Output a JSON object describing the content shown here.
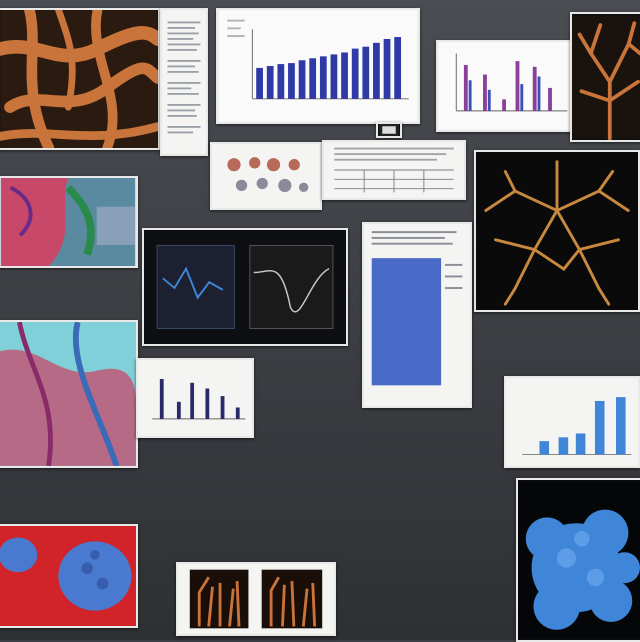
{
  "colors": {
    "background": "#3a3d42",
    "paper": "#f4f4f2",
    "coral_orange": "#c8743a",
    "coral_blue": "#3f86d8",
    "bar_blue": "#2f3aa8",
    "bar_purple": "#8a3f9a",
    "tissue_pink": "#c8486a",
    "tissue_teal": "#7fd0d8"
  },
  "tiles": [
    {
      "name": "orange-coral-photo",
      "icon": "coral-photo"
    },
    {
      "name": "text-document",
      "icon": "document"
    },
    {
      "name": "blue-bar-chart",
      "icon": "bar-chart"
    },
    {
      "name": "purple-bar-chart",
      "icon": "bar-chart"
    },
    {
      "name": "orange-coral-fan-photo",
      "icon": "coral-photo"
    },
    {
      "name": "monitor-screen",
      "icon": "monitor"
    },
    {
      "name": "pink-tissue-micrograph",
      "icon": "micrograph"
    },
    {
      "name": "specimen-sheet",
      "icon": "document"
    },
    {
      "name": "data-table-sheet",
      "icon": "table"
    },
    {
      "name": "dark-coral-network-photo",
      "icon": "coral-photo"
    },
    {
      "name": "blue-text-report",
      "icon": "document"
    },
    {
      "name": "line-plot-screen",
      "icon": "line-chart"
    },
    {
      "name": "teal-tissue-section",
      "icon": "micrograph"
    },
    {
      "name": "small-bar-chart",
      "icon": "bar-chart"
    },
    {
      "name": "large-blue-bar-chart",
      "icon": "bar-chart"
    },
    {
      "name": "blue-coral-photo",
      "icon": "coral-photo"
    },
    {
      "name": "red-blue-coral-photo",
      "icon": "coral-photo"
    },
    {
      "name": "orange-coral-pair-photo",
      "icon": "coral-photo"
    }
  ]
}
